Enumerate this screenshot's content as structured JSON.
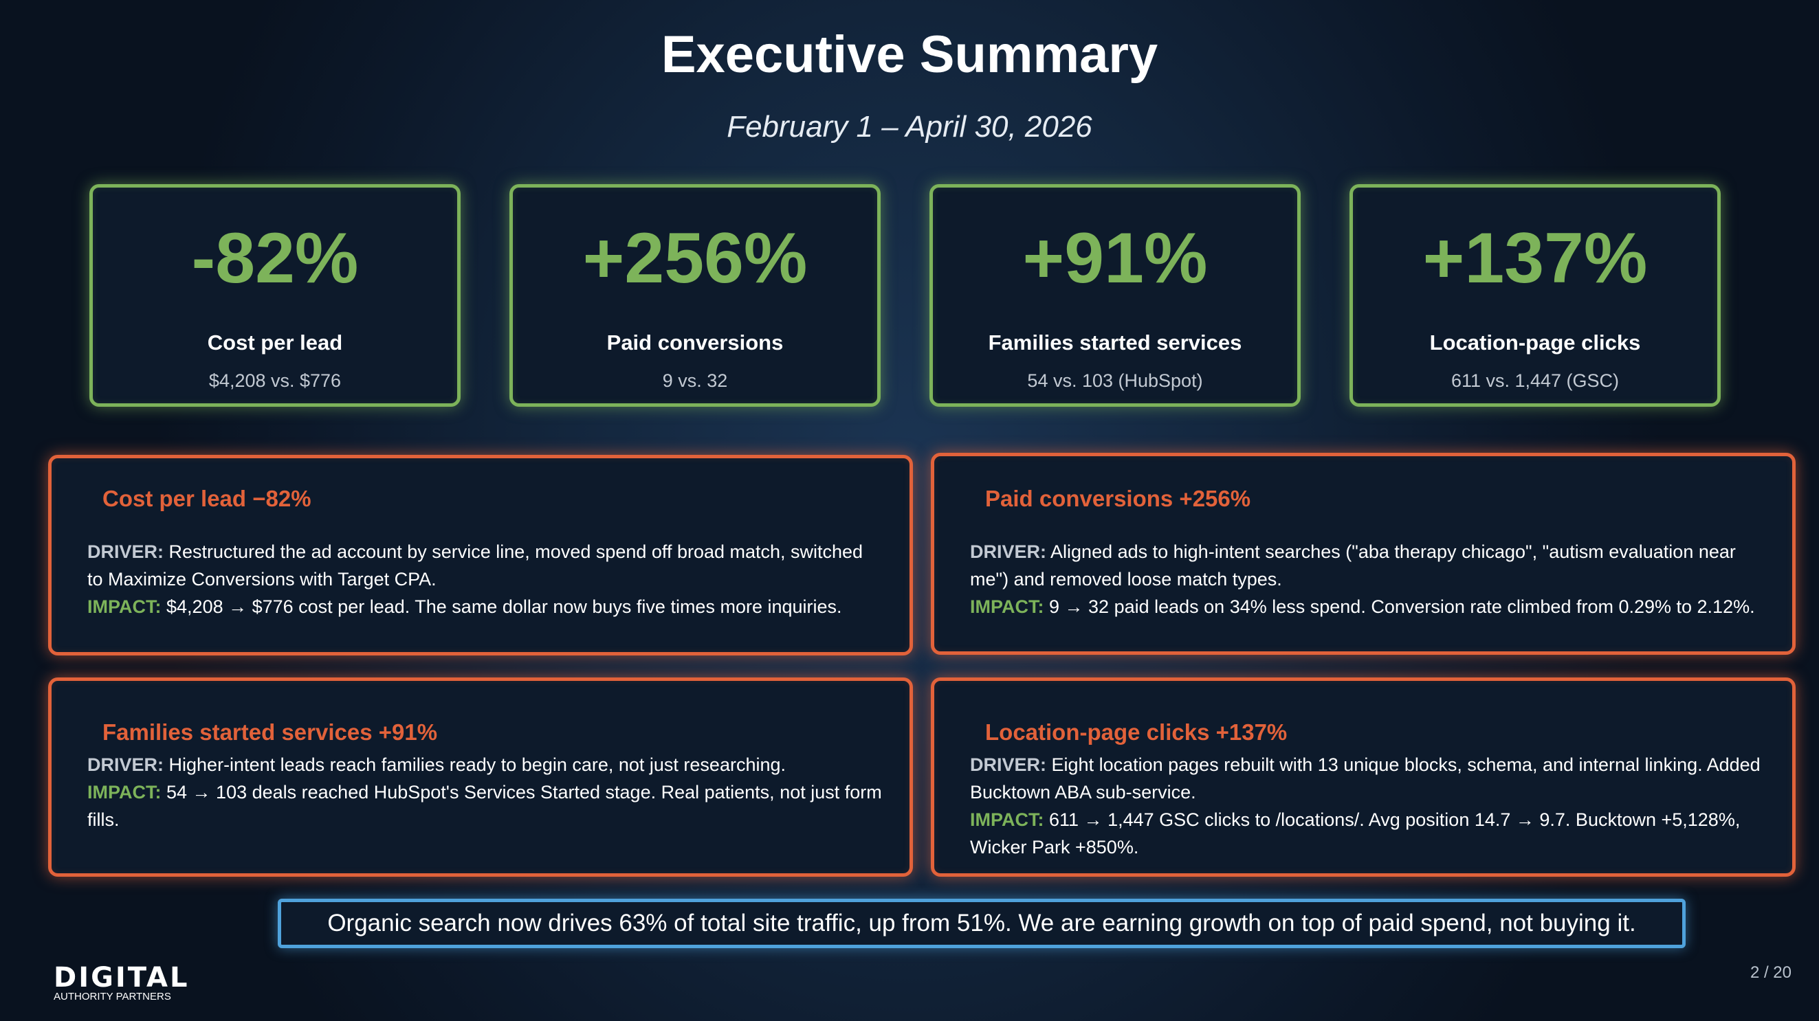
{
  "header": {
    "title": "Executive Summary",
    "subtitle": "February 1 – April 30, 2026"
  },
  "kpis": [
    {
      "value": "-82%",
      "label": "Cost per lead",
      "detail": "$4,208 vs. $776"
    },
    {
      "value": "+256%",
      "label": "Paid conversions",
      "detail": "9 vs. 32"
    },
    {
      "value": "+91%",
      "label": "Families started services",
      "detail": "54 vs. 103 (HubSpot)"
    },
    {
      "value": "+137%",
      "label": "Location-page clicks",
      "detail": "611 vs. 1,447 (GSC)"
    }
  ],
  "cards": [
    {
      "title": "Cost per lead −82%",
      "driver_label": "DRIVER:",
      "driver": "Restructured the ad account by service line, moved spend off broad match, switched to Maximize Conversions with Target CPA.",
      "impact_label": "IMPACT:",
      "impact": "$4,208 → $776 cost per lead. The same dollar now buys five times more inquiries."
    },
    {
      "title": "Paid conversions +256%",
      "driver_label": "DRIVER:",
      "driver": "Aligned ads to high-intent searches (\"aba therapy chicago\", \"autism evaluation near me\") and removed loose match types.",
      "impact_label": "IMPACT:",
      "impact": "9 → 32 paid leads on 34% less spend. Conversion rate climbed from 0.29% to 2.12%."
    },
    {
      "title": "Families started services +91%",
      "driver_label": "DRIVER:",
      "driver": "Higher-intent leads reach families ready to begin care, not just researching.",
      "impact_label": "IMPACT:",
      "impact": "54 → 103 deals reached HubSpot's Services Started stage. Real patients, not just form fills."
    },
    {
      "title": "Location-page clicks +137%",
      "driver_label": "DRIVER:",
      "driver": "Eight location pages rebuilt with 13 unique blocks, schema, and internal linking. Added Bucktown ABA sub-service.",
      "impact_label": "IMPACT:",
      "impact": "611 → 1,447 GSC clicks to /locations/. Avg position 14.7 → 9.7. Bucktown +5,128%, Wicker Park +850%."
    }
  ],
  "callout": "Organic search now drives 63% of total site traffic, up from 51%. We are earning growth on top of paid spend, not buying it.",
  "footer": {
    "logo_main": "DIGITAL",
    "logo_sub": "AUTHORITY PARTNERS",
    "page": "2 / 20"
  },
  "colors": {
    "kpi_accent": "#7db35a",
    "card_accent": "#e2623a",
    "callout_border": "#4fa2dc",
    "background": "#0b1526"
  }
}
